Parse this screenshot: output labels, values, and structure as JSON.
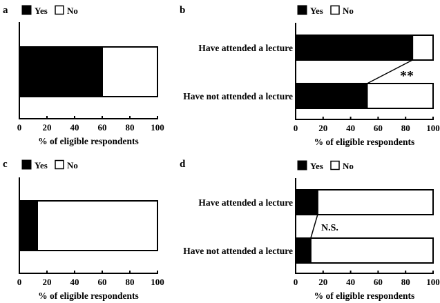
{
  "legend": {
    "yes_label": "Yes",
    "no_label": "No"
  },
  "colors": {
    "yes": "#000000",
    "no": "#ffffff",
    "stroke": "#000000"
  },
  "chart_data": [
    {
      "panel": "a",
      "type": "bar",
      "orientation": "horizontal",
      "stacked": true,
      "categories": [
        ""
      ],
      "series": [
        {
          "name": "Yes",
          "values": [
            60
          ]
        },
        {
          "name": "No",
          "values": [
            40
          ]
        }
      ],
      "xlabel": "% of eligible respondents",
      "ylabel": "",
      "xlim": [
        0,
        100
      ],
      "xticks": [
        0,
        20,
        40,
        60,
        80,
        100
      ],
      "legend_position": "top",
      "grid": false,
      "annotation": ""
    },
    {
      "panel": "b",
      "type": "bar",
      "orientation": "horizontal",
      "stacked": true,
      "categories": [
        "Have attended a lecture",
        "Have not attended a lecture"
      ],
      "series": [
        {
          "name": "Yes",
          "values": [
            85,
            52
          ]
        },
        {
          "name": "No",
          "values": [
            15,
            48
          ]
        }
      ],
      "xlabel": "% of eligible respondents",
      "ylabel": "",
      "xlim": [
        0,
        100
      ],
      "xticks": [
        0,
        20,
        40,
        60,
        80,
        100
      ],
      "legend_position": "top",
      "grid": false,
      "annotation": "**"
    },
    {
      "panel": "c",
      "type": "bar",
      "orientation": "horizontal",
      "stacked": true,
      "categories": [
        ""
      ],
      "series": [
        {
          "name": "Yes",
          "values": [
            13
          ]
        },
        {
          "name": "No",
          "values": [
            87
          ]
        }
      ],
      "xlabel": "% of eligible respondents",
      "ylabel": "",
      "xlim": [
        0,
        100
      ],
      "xticks": [
        0,
        20,
        40,
        60,
        80,
        100
      ],
      "legend_position": "top",
      "grid": false,
      "annotation": ""
    },
    {
      "panel": "d",
      "type": "bar",
      "orientation": "horizontal",
      "stacked": true,
      "categories": [
        "Have attended a lecture",
        "Have not attended a lecture"
      ],
      "series": [
        {
          "name": "Yes",
          "values": [
            16,
            11
          ]
        },
        {
          "name": "No",
          "values": [
            84,
            89
          ]
        }
      ],
      "xlabel": "% of eligible respondents",
      "ylabel": "",
      "xlim": [
        0,
        100
      ],
      "xticks": [
        0,
        20,
        40,
        60,
        80,
        100
      ],
      "legend_position": "top",
      "grid": false,
      "annotation": "N.S."
    }
  ]
}
